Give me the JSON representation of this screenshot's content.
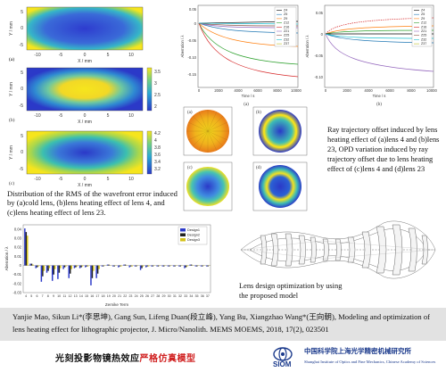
{
  "figure_a": {
    "panels": [
      {
        "label": "(a)",
        "colorbar_ticks": []
      },
      {
        "label": "(b)",
        "colorbar_ticks": [
          "3.5",
          "3",
          "2.5",
          "2"
        ]
      },
      {
        "label": "(c)",
        "colorbar_ticks": [
          "4.2",
          "4",
          "3.8",
          "3.6",
          "3.4",
          "3.2"
        ]
      }
    ],
    "y_label": "Y / mm",
    "x_label": "X / mm",
    "x_ticks": [
      "-10",
      "-5",
      "0",
      "5",
      "10"
    ],
    "y_ticks": [
      "5",
      "0",
      "-5"
    ]
  },
  "figure_b_left": {
    "y_label": "Aberration / λ",
    "x_label": "Time / s",
    "x_ticks": [
      "0",
      "2000",
      "4000",
      "6000",
      "8000",
      "10000"
    ],
    "y_ticks": [
      "0.05",
      "0",
      "-0.05",
      "-0.10",
      "-0.15"
    ],
    "panel_label": "(a)",
    "legend": [
      "Z4",
      "Z5",
      "Z9",
      "Z12",
      "Z16",
      "Z21",
      "Z25",
      "Z32",
      "Z37"
    ]
  },
  "figure_b_right": {
    "y_label": "Aberration / λ",
    "x_label": "Time / s",
    "x_ticks": [
      "0",
      "2000",
      "4000",
      "6000",
      "8000",
      "10000"
    ],
    "y_ticks": [
      "0.05",
      "0",
      "-0.05",
      "-0.10"
    ],
    "panel_label": "(b)",
    "legend": [
      "Z4",
      "Z5",
      "Z9",
      "Z12",
      "Z16",
      "Z21",
      "Z25",
      "Z32",
      "Z37"
    ]
  },
  "figure_c": {
    "panels": [
      {
        "label": "(a)"
      },
      {
        "label": "(b)"
      },
      {
        "label": "(c)"
      },
      {
        "label": "(d)"
      }
    ]
  },
  "caption_right": "Ray trajectory offset induced by lens heating effect of (a)lens 4 and (b)lens 23, OPD variation induced by ray trajectory offset due to lens heating effect of (c)lens 4 and (d)lens 23",
  "caption_left": "Distribution of the RMS of the wavefront error induced by (a)cold lens, (b)lens heating effect of lens 4, and (c)lens heating effect of lens 23.",
  "bar_chart": {
    "y_label": "Aberration / λ",
    "x_label": "Zernike Term",
    "legend": [
      "Design1",
      "Design2",
      "Design3"
    ],
    "x_ticks": [
      "4",
      "5",
      "6",
      "7",
      "8",
      "9",
      "10",
      "11",
      "12",
      "13",
      "14",
      "15",
      "16",
      "17",
      "18",
      "19",
      "20",
      "21",
      "22",
      "23",
      "24",
      "25",
      "26",
      "27",
      "28",
      "29",
      "30",
      "31",
      "32",
      "33",
      "34",
      "35",
      "36",
      "37"
    ],
    "y_ticks": [
      "0.04",
      "0.03",
      "0.02",
      "0.01",
      "0",
      "-0.01",
      "-0.02",
      "-0.03"
    ]
  },
  "chart_data": {
    "type": "bar",
    "categories": [
      "4",
      "5",
      "6",
      "7",
      "8",
      "9",
      "10",
      "11",
      "12",
      "13",
      "14",
      "15",
      "16",
      "17",
      "18",
      "19",
      "20",
      "21",
      "22",
      "23",
      "24",
      "25",
      "26",
      "27",
      "28",
      "29",
      "30",
      "31",
      "32",
      "33",
      "34",
      "35",
      "36",
      "37"
    ],
    "series": [
      {
        "name": "Design1",
        "values": [
          0.041,
          0.002,
          -0.003,
          -0.018,
          -0.008,
          -0.017,
          -0.015,
          -0.004,
          -0.014,
          -0.003,
          -0.003,
          -0.002,
          -0.022,
          -0.014,
          -0.001,
          0.001,
          -0.001,
          -0.002,
          0.001,
          -0.002,
          -0.001,
          -0.005,
          -0.002,
          -0.001,
          -0.001,
          -0.001,
          -0.001,
          -0.001,
          -0.001,
          -0.003,
          0.001,
          -0.001,
          -0.001,
          -0.001
        ]
      },
      {
        "name": "Design2",
        "values": [
          0.037,
          0.002,
          -0.002,
          -0.012,
          -0.006,
          -0.01,
          -0.008,
          -0.002,
          -0.009,
          -0.002,
          -0.002,
          -0.001,
          -0.014,
          -0.009,
          -0.001,
          0.001,
          -0.001,
          -0.001,
          0.001,
          -0.001,
          -0.001,
          -0.003,
          -0.001,
          -0.001,
          -0.001,
          -0.001,
          -0.001,
          -0.001,
          -0.001,
          -0.002,
          0.001,
          -0.001,
          -0.001,
          -0.001
        ]
      },
      {
        "name": "Design3",
        "values": [
          0.033,
          0.001,
          -0.001,
          -0.006,
          -0.003,
          -0.004,
          -0.003,
          -0.001,
          -0.004,
          -0.001,
          -0.001,
          -0.001,
          -0.006,
          -0.004,
          0.0,
          0.0,
          0.0,
          -0.001,
          0.0,
          -0.001,
          0.0,
          -0.001,
          -0.001,
          0.0,
          0.0,
          0.0,
          0.0,
          0.0,
          0.0,
          -0.001,
          0.0,
          0.0,
          0.0,
          0.0
        ]
      }
    ],
    "xlabel": "Zernike Term",
    "ylabel": "Aberration / λ",
    "ylim": [
      -0.03,
      0.045
    ]
  },
  "caption_lens": "Lens design optimization by using the proposed model",
  "reference": "Yanjie Mao, Sikun Li*(李思坤), Gang Sun, Lifeng Duan(段立峰), Yang Bu, Xiangzhao Wang*(王向朝), Modeling and optimization of lens heating effect for lithographic projector, J. Micro/Nanolith. MEMS MOEMS, 2018, 17(2), 023501",
  "footer": {
    "title_black": "光刻投影物镜热效应",
    "title_red": "严格仿真模型",
    "logo_text": "SIOM",
    "org_cn": "中国科学院上海光学精密机械研究所",
    "org_en": "Shanghai Institute of Optics and Fine Mechanics, Chinese Academy of Sciences"
  },
  "colors": {
    "blue": "#2b39c8",
    "yellow": "#f4e61c",
    "cyan": "#27b7a8",
    "ref_bg": "#e2e2e2",
    "red": "#d02020",
    "siom_blue": "#1b3a8c"
  }
}
